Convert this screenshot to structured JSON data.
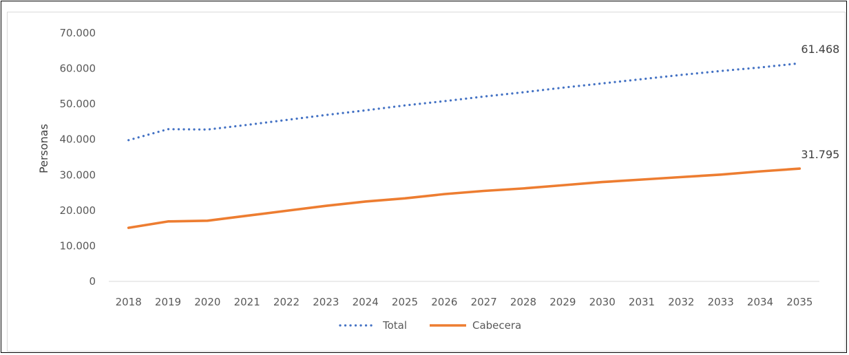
{
  "chart_data": {
    "type": "line",
    "title": "",
    "xlabel": "",
    "ylabel": "Personas",
    "ylim": [
      0,
      70000
    ],
    "ytick_values": [
      0,
      10000,
      20000,
      30000,
      40000,
      50000,
      60000,
      70000
    ],
    "ytick_labels": [
      "0",
      "10.000",
      "20.000",
      "30.000",
      "40.000",
      "50.000",
      "60.000",
      "70.000"
    ],
    "grid": false,
    "legend_position": "bottom",
    "categories": [
      "2018",
      "2019",
      "2020",
      "2021",
      "2022",
      "2023",
      "2024",
      "2025",
      "2026",
      "2027",
      "2028",
      "2029",
      "2030",
      "2031",
      "2032",
      "2033",
      "2034",
      "2035"
    ],
    "series": [
      {
        "name": "Total",
        "color": "#4472c4",
        "style": "dotted",
        "values": [
          39800,
          42900,
          42800,
          44100,
          45500,
          46900,
          48200,
          49600,
          50800,
          52100,
          53300,
          54600,
          55800,
          57000,
          58200,
          59300,
          60300,
          61468
        ],
        "end_label": "61.468"
      },
      {
        "name": "Cabecera",
        "color": "#ed7d31",
        "style": "solid",
        "values": [
          15100,
          16900,
          17100,
          18500,
          19900,
          21300,
          22500,
          23400,
          24600,
          25500,
          26200,
          27100,
          28000,
          28700,
          29400,
          30100,
          31000,
          31795
        ],
        "end_label": "31.795"
      }
    ]
  }
}
